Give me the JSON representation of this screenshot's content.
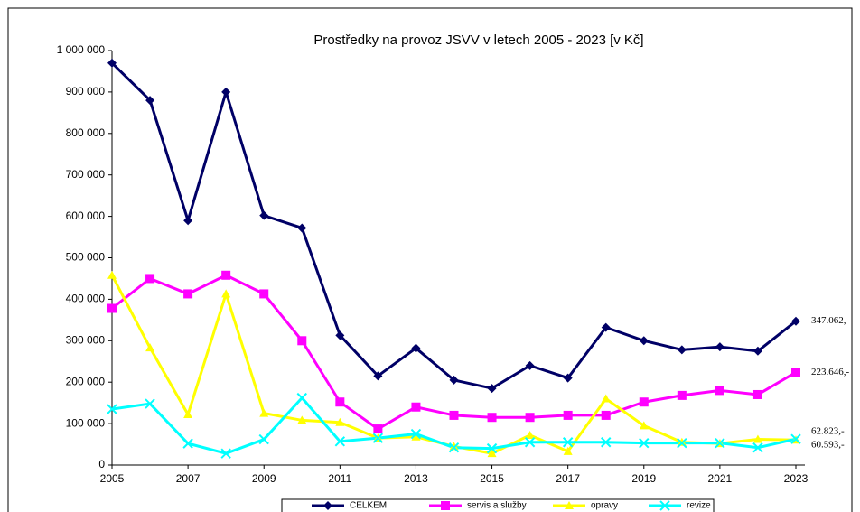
{
  "chart_data": {
    "type": "line",
    "title": "Prostředky na provoz JSVV v letech 2005 - 2023 [v Kč]",
    "x": [
      2005,
      2006,
      2007,
      2008,
      2009,
      2010,
      2011,
      2012,
      2013,
      2014,
      2015,
      2016,
      2017,
      2018,
      2019,
      2020,
      2021,
      2022,
      2023
    ],
    "xlim": [
      2005,
      2023
    ],
    "xticks": [
      2005,
      2007,
      2009,
      2011,
      2013,
      2015,
      2017,
      2019,
      2021,
      2023
    ],
    "ylim": [
      0,
      1000000
    ],
    "yticks": [
      0,
      {
        "value": 100000,
        "label": "100 000"
      },
      {
        "value": 200000,
        "label": "200 000"
      },
      {
        "value": 300000,
        "label": "300 000"
      },
      {
        "value": 400000,
        "label": "400 000"
      },
      {
        "value": 500000,
        "label": "500 000"
      },
      {
        "value": 600000,
        "label": "600 000"
      },
      {
        "value": 700000,
        "label": "700 000"
      },
      {
        "value": 800000,
        "label": "800 000"
      },
      {
        "value": 900000,
        "label": "900 000"
      },
      {
        "value": 1000000,
        "label": "1 000 000"
      }
    ],
    "legend": "bottom",
    "series": [
      {
        "name": "CELKEM",
        "color": "#000066",
        "marker": "diamond",
        "values": [
          970000,
          880000,
          590000,
          900000,
          602000,
          572000,
          313000,
          215000,
          282000,
          205000,
          185000,
          240000,
          210000,
          332000,
          300000,
          278000,
          285000,
          275000,
          347062
        ],
        "value_labels": [
          null,
          null,
          null,
          null,
          null,
          null,
          null,
          null,
          null,
          null,
          null,
          null,
          null,
          null,
          null,
          null,
          null,
          null,
          "347.062,-"
        ]
      },
      {
        "name": "servis a služby",
        "color": "#ff00ff",
        "marker": "square",
        "values": [
          378000,
          450000,
          413000,
          458000,
          413000,
          300000,
          152000,
          87000,
          140000,
          120000,
          115000,
          115000,
          120000,
          120000,
          152000,
          168000,
          180000,
          170000,
          223646
        ],
        "value_labels": [
          null,
          null,
          null,
          null,
          null,
          null,
          null,
          null,
          null,
          null,
          null,
          null,
          null,
          null,
          null,
          null,
          null,
          null,
          "223.646,-"
        ]
      },
      {
        "name": "opravy",
        "color": "#ffff00",
        "marker": "triangle",
        "values": [
          458000,
          283000,
          122000,
          413000,
          125000,
          108000,
          103000,
          65000,
          68000,
          45000,
          28000,
          72000,
          33000,
          160000,
          95000,
          55000,
          52000,
          62000,
          60593
        ],
        "value_labels": [
          null,
          null,
          null,
          null,
          null,
          null,
          null,
          null,
          null,
          null,
          null,
          null,
          null,
          null,
          null,
          null,
          null,
          null,
          "60.593,-"
        ]
      },
      {
        "name": "revize",
        "color": "#00ffff",
        "marker": "x",
        "values": [
          135000,
          148000,
          52000,
          28000,
          62000,
          162000,
          57000,
          65000,
          75000,
          42000,
          40000,
          55000,
          55000,
          55000,
          53000,
          53000,
          53000,
          42000,
          62823
        ],
        "value_labels": [
          null,
          null,
          null,
          null,
          null,
          null,
          null,
          null,
          null,
          null,
          null,
          null,
          null,
          null,
          null,
          null,
          null,
          null,
          "62.823,-"
        ]
      }
    ]
  }
}
